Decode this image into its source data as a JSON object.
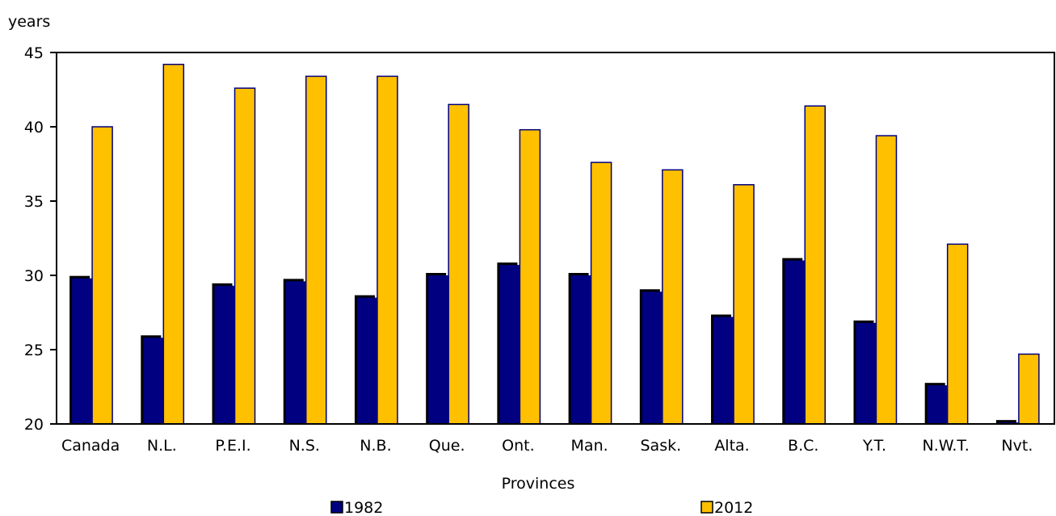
{
  "chart_data": {
    "type": "bar",
    "title": "",
    "ylabel": "years",
    "xlabel": "Provinces",
    "ylim": [
      20,
      45
    ],
    "yticks": [
      20,
      25,
      30,
      35,
      40,
      45
    ],
    "grid": false,
    "legend_position": "bottom",
    "categories": [
      "Canada",
      "N.L.",
      "P.E.I.",
      "N.S.",
      "N.B.",
      "Que.",
      "Ont.",
      "Man.",
      "Sask.",
      "Alta.",
      "B.C.",
      "Y.T.",
      "N.W.T.",
      "Nvt."
    ],
    "series": [
      {
        "name": "1982",
        "color": "#000080",
        "values": [
          29.8,
          25.8,
          29.3,
          29.6,
          28.5,
          30.0,
          30.7,
          30.0,
          28.9,
          27.2,
          31.0,
          26.8,
          22.6,
          20.1
        ]
      },
      {
        "name": "2012",
        "color": "#FFC000",
        "values": [
          40.0,
          44.2,
          42.6,
          43.4,
          43.4,
          41.5,
          39.8,
          37.6,
          37.1,
          36.1,
          41.4,
          39.4,
          32.1,
          24.7
        ]
      }
    ]
  }
}
